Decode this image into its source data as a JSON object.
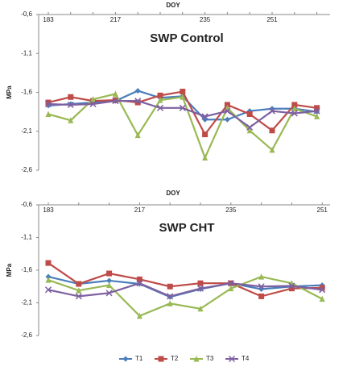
{
  "chart_data": [
    {
      "type": "line",
      "title": "SWP Control",
      "x_label": "DOY",
      "y_label": "MPa",
      "categories": [
        "183",
        null,
        null,
        "217",
        null,
        null,
        null,
        "235",
        null,
        null,
        "251",
        null,
        null
      ],
      "ylim": [
        -0.6,
        -2.6
      ],
      "yticks": [
        {
          "value": -0.6,
          "label": "-0,6"
        },
        {
          "value": -1.1,
          "label": "-1,1"
        },
        {
          "value": -1.6,
          "label": "-1,6"
        },
        {
          "value": -2.1,
          "label": "-2,1"
        },
        {
          "value": -2.6,
          "label": "-2,6"
        }
      ],
      "legend": "bottom",
      "series": [
        {
          "name": "T1",
          "color": "#4a7ebb",
          "marker": "diamond",
          "values": [
            -1.77,
            -1.75,
            -1.73,
            -1.71,
            -1.58,
            -1.67,
            -1.65,
            -1.95,
            -1.95,
            -1.84,
            -1.81,
            -1.81,
            -1.85
          ]
        },
        {
          "name": "T2",
          "color": "#be4b48",
          "marker": "square",
          "values": [
            -1.73,
            -1.66,
            -1.71,
            -1.7,
            -1.73,
            -1.64,
            -1.59,
            -2.14,
            -1.76,
            -1.88,
            -2.09,
            -1.76,
            -1.8
          ]
        },
        {
          "name": "T3",
          "color": "#98b954",
          "marker": "triangle",
          "values": [
            -1.88,
            -1.96,
            -1.69,
            -1.62,
            -2.15,
            -1.7,
            -1.66,
            -2.44,
            -1.8,
            -2.09,
            -2.34,
            -1.81,
            -1.91
          ]
        },
        {
          "name": "T4",
          "color": "#7d60a0",
          "marker": "x",
          "values": [
            -1.75,
            -1.76,
            -1.75,
            -1.71,
            -1.71,
            -1.8,
            -1.8,
            -1.91,
            -1.84,
            -2.05,
            -1.84,
            -1.87,
            -1.84
          ]
        }
      ]
    },
    {
      "type": "line",
      "title": "SWP CHT",
      "x_label": "DOY",
      "y_label": "MPa",
      "categories": [
        "183",
        null,
        null,
        "217",
        null,
        null,
        "235",
        null,
        null,
        "251"
      ],
      "ylim": [
        -0.6,
        -2.6
      ],
      "yticks": [
        {
          "value": -0.6,
          "label": "-0,6"
        },
        {
          "value": -1.1,
          "label": "-1,1"
        },
        {
          "value": -1.6,
          "label": "-1,6"
        },
        {
          "value": -2.1,
          "label": "-2,1"
        },
        {
          "value": -2.6,
          "label": "-2,6"
        }
      ],
      "series": [
        {
          "color": "#4a7ebb",
          "marker": "diamond",
          "values": [
            -1.7,
            -1.81,
            -1.76,
            -1.81,
            -2.01,
            -1.89,
            -1.8,
            -1.89,
            -1.85,
            -1.83
          ]
        },
        {
          "color": "#be4b48",
          "marker": "square",
          "values": [
            -1.49,
            -1.81,
            -1.65,
            -1.74,
            -1.85,
            -1.8,
            -1.8,
            -2.0,
            -1.88,
            -1.87
          ]
        },
        {
          "color": "#98b954",
          "marker": "triangle",
          "values": [
            -1.75,
            -1.91,
            -1.83,
            -2.3,
            -2.11,
            -2.19,
            -1.88,
            -1.7,
            -1.8,
            -2.04
          ]
        },
        {
          "color": "#7d60a0",
          "marker": "x",
          "values": [
            -1.9,
            -2.0,
            -1.95,
            -1.8,
            -2.0,
            -1.88,
            -1.8,
            -1.85,
            -1.84,
            -1.9
          ]
        }
      ]
    }
  ]
}
